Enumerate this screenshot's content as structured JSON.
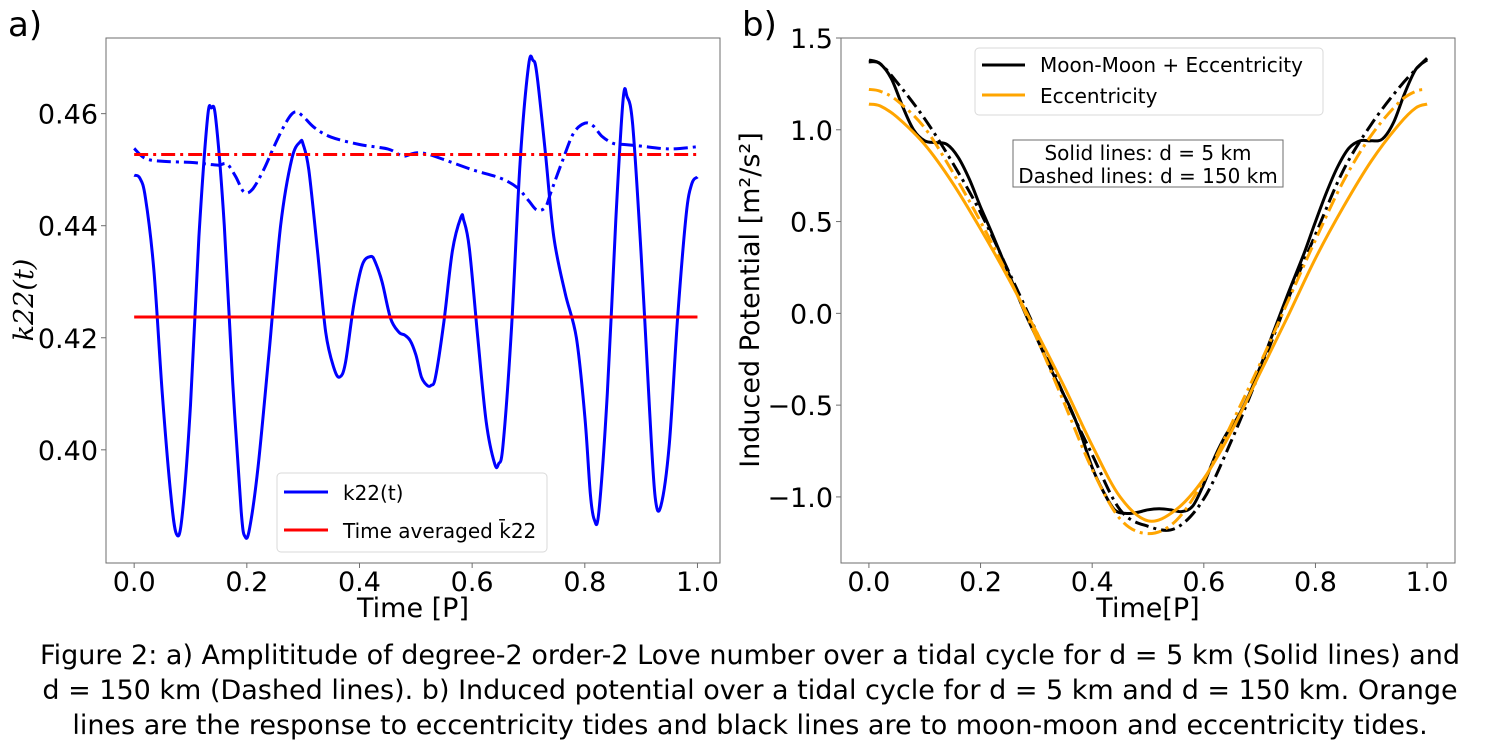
{
  "caption": {
    "line1": "Figure 2: a) Amplititude of degree-2 order-2 Love number over a tidal cycle for d = 5 km (Solid lines) and",
    "line2": "d = 150 km (Dashed lines). b) Induced potential over a tidal cycle for d = 5 km and d = 150 km. Orange",
    "line3": "lines are the response to eccentricity tides and black lines are to moon-moon and eccentricity tides."
  },
  "chart_data": [
    {
      "panel_label": "a)",
      "type": "line",
      "title": "",
      "xlabel": "Time [P]",
      "ylabel": "k22(t)",
      "xlim": [
        -0.05,
        1.04
      ],
      "ylim": [
        0.3798,
        0.4735
      ],
      "xticks": [
        0.0,
        0.2,
        0.4,
        0.6,
        0.8,
        1.0
      ],
      "xtick_labels": [
        "0.0",
        "0.2",
        "0.4",
        "0.6",
        "0.8",
        "1.0"
      ],
      "yticks": [
        0.4,
        0.42,
        0.44,
        0.46
      ],
      "ytick_labels": [
        "0.40",
        "0.42",
        "0.44",
        "0.46"
      ],
      "grid": false,
      "legend": {
        "placement": "lower-center",
        "entries": [
          {
            "label": "k22(t)",
            "color": "#0000ff"
          },
          {
            "label": "Time averaged k̄22",
            "color": "#ff0000"
          }
        ]
      },
      "series": [
        {
          "name": "k22(t), d = 5 km",
          "color": "#0000ff",
          "style": "solid",
          "x": [
            0.0,
            0.01,
            0.02,
            0.035,
            0.05,
            0.065,
            0.075,
            0.085,
            0.1,
            0.115,
            0.13,
            0.137,
            0.145,
            0.16,
            0.175,
            0.19,
            0.197,
            0.205,
            0.22,
            0.24,
            0.26,
            0.28,
            0.295,
            0.3,
            0.31,
            0.325,
            0.34,
            0.355,
            0.365,
            0.375,
            0.39,
            0.405,
            0.42,
            0.428,
            0.44,
            0.455,
            0.47,
            0.48,
            0.49,
            0.5,
            0.51,
            0.52,
            0.527,
            0.535,
            0.55,
            0.565,
            0.58,
            0.585,
            0.595,
            0.61,
            0.625,
            0.64,
            0.647,
            0.655,
            0.67,
            0.685,
            0.7,
            0.708,
            0.715,
            0.73,
            0.745,
            0.765,
            0.785,
            0.8,
            0.81,
            0.817,
            0.825,
            0.84,
            0.855,
            0.868,
            0.875,
            0.885,
            0.9,
            0.915,
            0.925,
            0.935,
            0.95,
            0.965,
            0.98,
            0.99,
            1.0
          ],
          "y": [
            0.449,
            0.4485,
            0.445,
            0.432,
            0.41,
            0.392,
            0.385,
            0.388,
            0.408,
            0.438,
            0.459,
            0.461,
            0.459,
            0.44,
            0.412,
            0.389,
            0.3845,
            0.386,
            0.397,
            0.418,
            0.44,
            0.452,
            0.455,
            0.4545,
            0.45,
            0.436,
            0.421,
            0.4145,
            0.413,
            0.4155,
            0.426,
            0.433,
            0.4345,
            0.4335,
            0.43,
            0.4235,
            0.421,
            0.4205,
            0.4195,
            0.417,
            0.413,
            0.4115,
            0.4115,
            0.413,
            0.423,
            0.4355,
            0.4415,
            0.441,
            0.436,
            0.42,
            0.405,
            0.3975,
            0.3975,
            0.401,
            0.422,
            0.451,
            0.4685,
            0.4695,
            0.467,
            0.453,
            0.438,
            0.428,
            0.42,
            0.406,
            0.392,
            0.3875,
            0.389,
            0.41,
            0.441,
            0.4625,
            0.463,
            0.458,
            0.435,
            0.407,
            0.3915,
            0.39,
            0.401,
            0.424,
            0.442,
            0.4475,
            0.4487
          ]
        },
        {
          "name": "k22(t), d = 150 km",
          "color": "#0000ff",
          "style": "dashdot",
          "x": [
            0.0,
            0.02,
            0.05,
            0.1,
            0.13,
            0.15,
            0.165,
            0.18,
            0.195,
            0.21,
            0.23,
            0.25,
            0.27,
            0.285,
            0.3,
            0.32,
            0.35,
            0.4,
            0.45,
            0.47,
            0.48,
            0.5,
            0.52,
            0.55,
            0.6,
            0.65,
            0.68,
            0.7,
            0.715,
            0.73,
            0.74,
            0.76,
            0.78,
            0.8,
            0.815,
            0.83,
            0.85,
            0.87,
            0.9,
            0.95,
            1.0
          ],
          "y": [
            0.4538,
            0.452,
            0.4515,
            0.4513,
            0.451,
            0.4508,
            0.451,
            0.4488,
            0.446,
            0.4465,
            0.45,
            0.4545,
            0.4585,
            0.4603,
            0.4595,
            0.4575,
            0.4558,
            0.4545,
            0.4537,
            0.4527,
            0.4524,
            0.453,
            0.4528,
            0.4518,
            0.45,
            0.4485,
            0.4468,
            0.4445,
            0.4428,
            0.4433,
            0.446,
            0.4515,
            0.4565,
            0.4583,
            0.4578,
            0.456,
            0.4547,
            0.4545,
            0.4542,
            0.4537,
            0.4541
          ]
        },
        {
          "name": "Time averaged k̄22, d = 5 km",
          "color": "#ff0000",
          "style": "solid",
          "x": [
            0.0,
            1.0
          ],
          "y": [
            0.4237,
            0.4237
          ]
        },
        {
          "name": "Time averaged k̄22, d = 150 km",
          "color": "#ff0000",
          "style": "dashdot",
          "x": [
            0.0,
            1.0
          ],
          "y": [
            0.4527,
            0.4527
          ]
        }
      ]
    },
    {
      "panel_label": "b)",
      "type": "line",
      "title": "",
      "xlabel": "Time[P]",
      "ylabel": "Induced Potential [m²/s²]",
      "xlim": [
        -0.05,
        1.05
      ],
      "ylim": [
        -1.36,
        1.5
      ],
      "xticks": [
        0.0,
        0.2,
        0.4,
        0.6,
        0.8,
        1.0
      ],
      "xtick_labels": [
        "0.0",
        "0.2",
        "0.4",
        "0.6",
        "0.8",
        "1.0"
      ],
      "yticks": [
        -1.0,
        -0.5,
        0.0,
        0.5,
        1.0,
        1.5
      ],
      "ytick_labels": [
        "−1.0",
        "−0.5",
        "0.0",
        "0.5",
        "1.0",
        "1.5"
      ],
      "grid": false,
      "legend": {
        "placement": "upper-center",
        "entries": [
          {
            "label": "Moon-Moon + Eccentricity",
            "color": "#000000"
          },
          {
            "label": "Eccentricity",
            "color": "#ffa500"
          }
        ]
      },
      "annotation": {
        "line1": "Solid lines: d = 5 km",
        "line2": "Dashed lines: d = 150 km"
      },
      "series": [
        {
          "name": "Moon-Moon + Eccentricity, d = 5 km",
          "color": "#000000",
          "style": "solid",
          "x": [
            0.0,
            0.02,
            0.04,
            0.06,
            0.08,
            0.1,
            0.12,
            0.14,
            0.16,
            0.18,
            0.2,
            0.22,
            0.25,
            0.28,
            0.3,
            0.33,
            0.36,
            0.38,
            0.4,
            0.42,
            0.44,
            0.46,
            0.48,
            0.5,
            0.52,
            0.54,
            0.56,
            0.58,
            0.6,
            0.62,
            0.64,
            0.66,
            0.68,
            0.7,
            0.72,
            0.75,
            0.78,
            0.8,
            0.82,
            0.84,
            0.86,
            0.88,
            0.9,
            0.92,
            0.94,
            0.96,
            0.98,
            1.0
          ],
          "y": [
            1.38,
            1.36,
            1.28,
            1.13,
            1.0,
            0.94,
            0.93,
            0.92,
            0.85,
            0.73,
            0.58,
            0.44,
            0.22,
            0.0,
            -0.13,
            -0.33,
            -0.51,
            -0.66,
            -0.84,
            -0.97,
            -1.07,
            -1.09,
            -1.085,
            -1.07,
            -1.065,
            -1.07,
            -1.08,
            -1.05,
            -0.93,
            -0.78,
            -0.66,
            -0.57,
            -0.45,
            -0.3,
            -0.14,
            0.1,
            0.33,
            0.5,
            0.66,
            0.8,
            0.9,
            0.94,
            0.94,
            0.95,
            1.04,
            1.2,
            1.33,
            1.38
          ]
        },
        {
          "name": "Moon-Moon + Eccentricity, d = 150 km",
          "color": "#000000",
          "style": "dashdot",
          "x": [
            0.0,
            0.02,
            0.05,
            0.1,
            0.15,
            0.2,
            0.25,
            0.3,
            0.35,
            0.4,
            0.45,
            0.5,
            0.55,
            0.6,
            0.65,
            0.7,
            0.75,
            0.8,
            0.85,
            0.9,
            0.95,
            0.98,
            1.0
          ],
          "y": [
            1.37,
            1.36,
            1.26,
            1.06,
            0.82,
            0.55,
            0.23,
            -0.1,
            -0.45,
            -0.77,
            -1.07,
            -1.16,
            -1.17,
            -1.01,
            -0.69,
            -0.32,
            0.07,
            0.43,
            0.78,
            1.03,
            1.23,
            1.33,
            1.39
          ]
        },
        {
          "name": "Eccentricity, d = 5 km",
          "color": "#ffa500",
          "style": "solid",
          "x": [
            0.0,
            0.02,
            0.05,
            0.1,
            0.15,
            0.2,
            0.25,
            0.3,
            0.35,
            0.4,
            0.45,
            0.5,
            0.55,
            0.6,
            0.65,
            0.7,
            0.75,
            0.8,
            0.85,
            0.9,
            0.95,
            0.98,
            1.0
          ],
          "y": [
            1.14,
            1.13,
            1.07,
            0.92,
            0.71,
            0.46,
            0.19,
            -0.1,
            -0.4,
            -0.72,
            -1.0,
            -1.13,
            -1.07,
            -0.9,
            -0.64,
            -0.33,
            -0.02,
            0.3,
            0.58,
            0.83,
            1.03,
            1.12,
            1.14
          ]
        },
        {
          "name": "Eccentricity, d = 150 km",
          "color": "#ffa500",
          "style": "dashdot",
          "x": [
            0.0,
            0.02,
            0.05,
            0.1,
            0.15,
            0.2,
            0.25,
            0.3,
            0.35,
            0.4,
            0.45,
            0.5,
            0.55,
            0.6,
            0.65,
            0.7,
            0.75,
            0.8,
            0.85,
            0.9,
            0.95,
            0.98,
            1.0
          ],
          "y": [
            1.22,
            1.21,
            1.16,
            1.01,
            0.77,
            0.5,
            0.2,
            -0.13,
            -0.49,
            -0.85,
            -1.12,
            -1.2,
            -1.13,
            -0.91,
            -0.6,
            -0.28,
            0.06,
            0.4,
            0.72,
            0.97,
            1.15,
            1.21,
            1.22
          ]
        }
      ]
    }
  ]
}
